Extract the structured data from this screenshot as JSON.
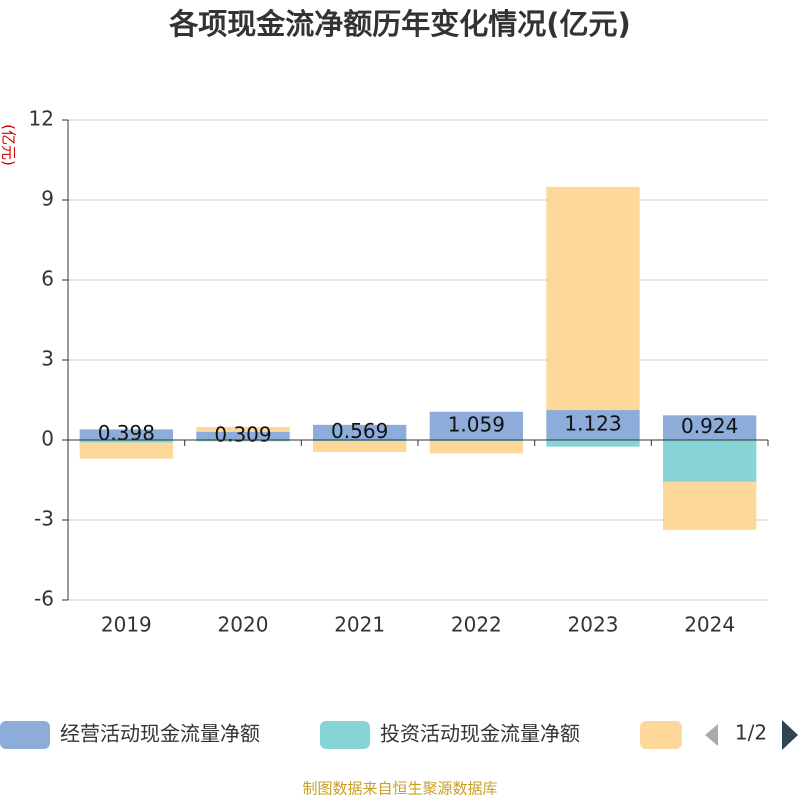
{
  "chart_data": {
    "type": "bar",
    "stacked": true,
    "title": "各项现金流净额历年变化情况(亿元)",
    "y_label": "(亿元)",
    "categories": [
      "2019",
      "2020",
      "2021",
      "2022",
      "2023",
      "2024"
    ],
    "series": [
      {
        "name": "经营活动现金流量净额",
        "color": "#8eacd9",
        "values": [
          0.398,
          0.309,
          0.569,
          1.059,
          1.123,
          0.924
        ]
      },
      {
        "name": "投资活动现金流量净额",
        "color": "#86d4d6",
        "values": [
          -0.1,
          -0.05,
          -0.05,
          -0.05,
          -0.25,
          -1.57
        ]
      },
      {
        "color": "#fdd89a",
        "values": [
          -0.6,
          0.18,
          -0.4,
          -0.45,
          8.37,
          -1.8
        ]
      }
    ],
    "ylim": [
      -6,
      12
    ],
    "yticks": [
      -6,
      -3,
      0,
      3,
      6,
      9,
      12
    ],
    "grid": true,
    "legend_page": "1/2",
    "source": "制图数据来自恒生聚源数据库"
  }
}
